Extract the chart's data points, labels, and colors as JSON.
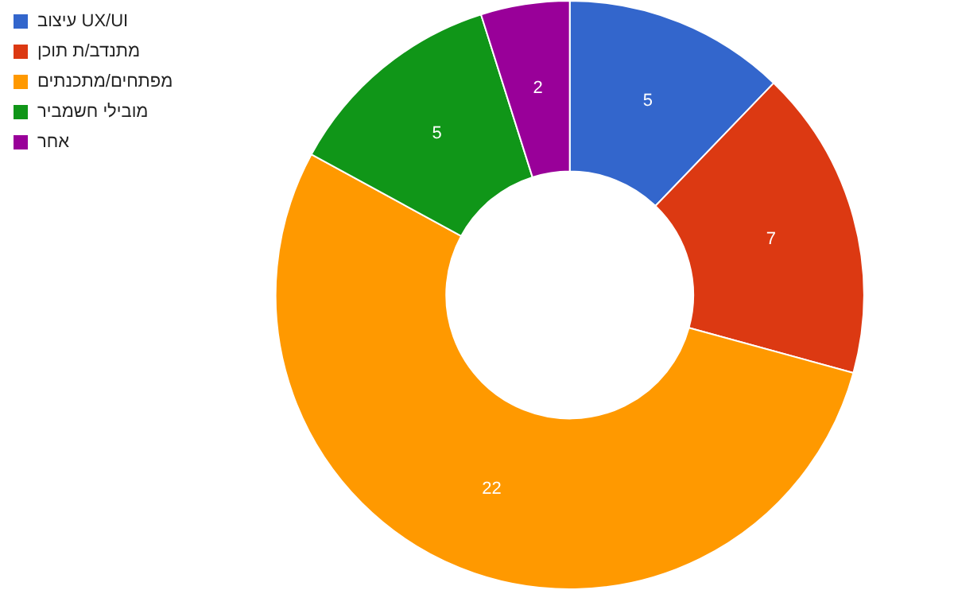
{
  "chart_data": {
    "type": "donut",
    "categories": [
      "עיצוב UX/UI",
      "מתנדב/ת תוכן",
      "מפתחים/מתכנתים",
      "מובילי חשמביר",
      "אחר"
    ],
    "values": [
      5,
      7,
      22,
      5,
      2
    ],
    "colors": [
      "#3366cc",
      "#dc3912",
      "#ff9900",
      "#109618",
      "#990099"
    ],
    "data_labels": true,
    "legend": "top left"
  }
}
